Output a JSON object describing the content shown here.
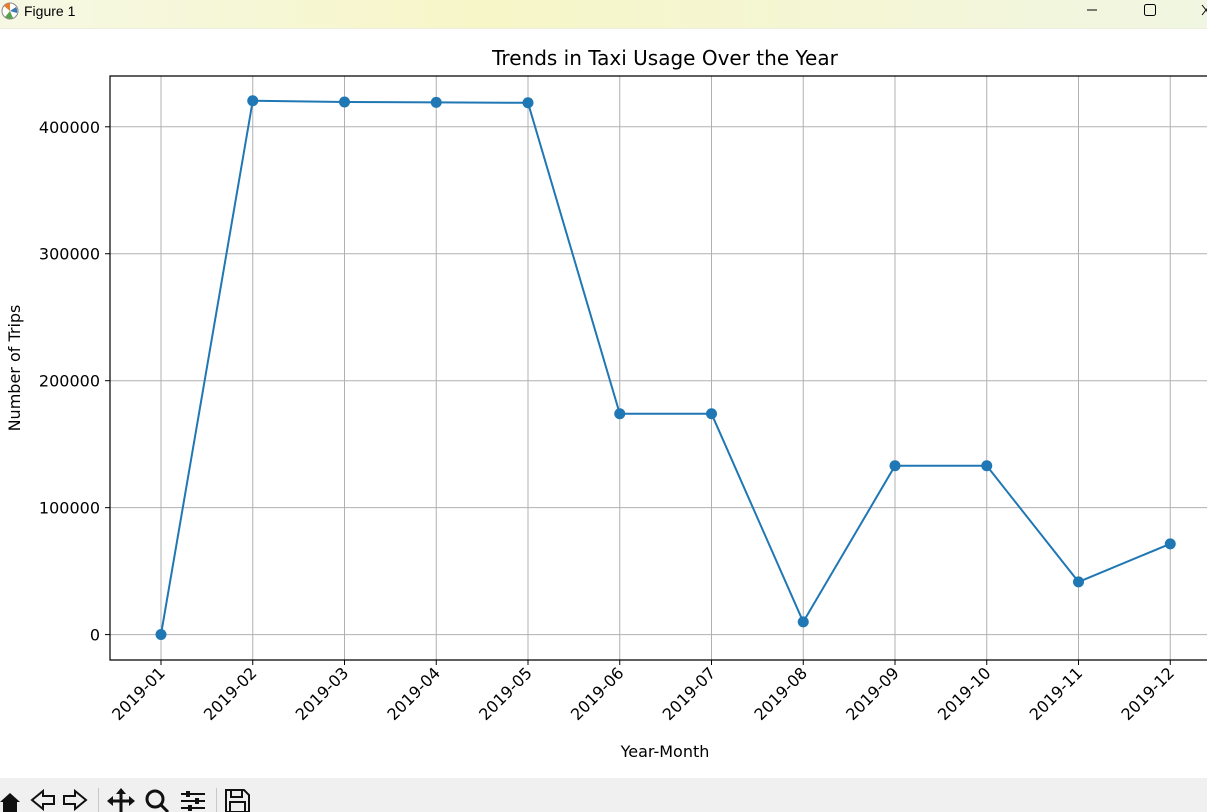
{
  "window": {
    "title": "Figure 1",
    "controls": {
      "minimize": "minimize",
      "maximize": "maximize",
      "close": "close"
    }
  },
  "toolbar": {
    "tools": [
      "home-icon",
      "back-arrow-icon",
      "forward-arrow-icon",
      "pan-icon",
      "zoom-icon",
      "configure-subplots-icon",
      "save-icon"
    ]
  },
  "colors": {
    "line": "#1f77b4",
    "grid": "#b0b0b0",
    "toolbar_bg": "#f0f0f0"
  },
  "chart_data": {
    "type": "line",
    "title": "Trends in Taxi Usage Over the Year",
    "xlabel": "Year-Month",
    "ylabel": "Number of Trips",
    "categories": [
      "2019-01",
      "2019-02",
      "2019-03",
      "2019-04",
      "2019-05",
      "2019-06",
      "2019-07",
      "2019-08",
      "2019-09",
      "2019-10",
      "2019-11",
      "2019-12"
    ],
    "series": [
      {
        "values": [
          100,
          420500,
          419500,
          419200,
          418900,
          174000,
          174000,
          10000,
          133000,
          133000,
          41500,
          71500
        ],
        "marker": "circle"
      }
    ],
    "yticks": [
      0,
      100000,
      200000,
      300000,
      400000
    ],
    "ytick_labels": [
      "0",
      "100000",
      "200000",
      "300000",
      "400000"
    ],
    "ylim": [
      -20000,
      440000
    ],
    "grid": true,
    "legend": "none"
  }
}
